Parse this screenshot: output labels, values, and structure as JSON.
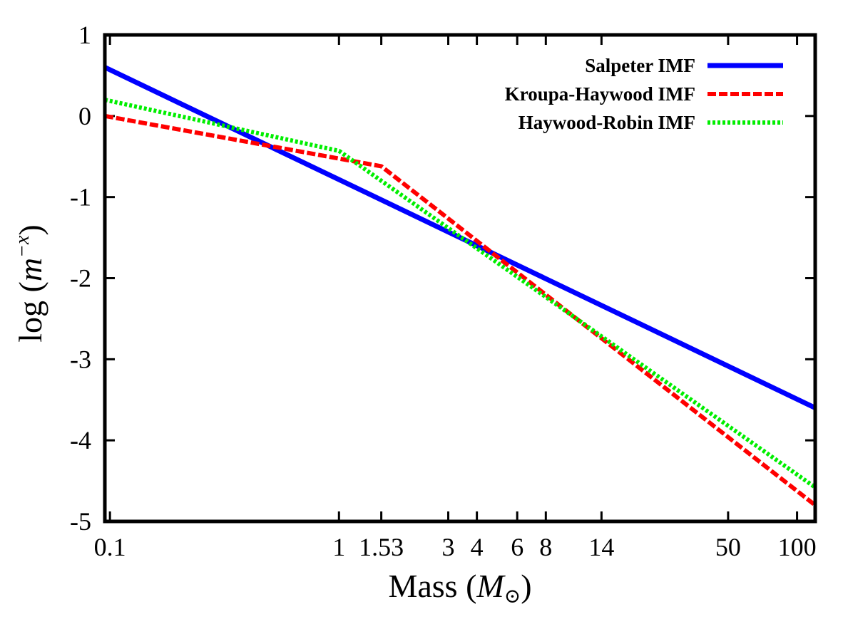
{
  "chart_data": {
    "type": "line",
    "xscale": "log",
    "xlim": [
      0.095,
      120
    ],
    "ylim": [
      -5,
      1
    ],
    "xlabel": {
      "text": "Mass (",
      "symbol": "M",
      "subscript": "⊙",
      "close": ")"
    },
    "ylabel": {
      "text": "log (",
      "symbol": "m",
      "superscript": "−x",
      "close": ")"
    },
    "x_ticks": [
      {
        "value": 0.1,
        "label": "0.1"
      },
      {
        "value": 1,
        "label": "1"
      },
      {
        "value": 1.53,
        "label": "1.53"
      },
      {
        "value": 3,
        "label": "3"
      },
      {
        "value": 4,
        "label": "4"
      },
      {
        "value": 6,
        "label": "6"
      },
      {
        "value": 8,
        "label": "8"
      },
      {
        "value": 14,
        "label": "14"
      },
      {
        "value": 50,
        "label": "50"
      },
      {
        "value": 100,
        "label": "100"
      }
    ],
    "y_ticks": [
      {
        "value": 1,
        "label": "1"
      },
      {
        "value": 0,
        "label": "0"
      },
      {
        "value": -1,
        "label": "-1"
      },
      {
        "value": -2,
        "label": "-2"
      },
      {
        "value": -3,
        "label": "-3"
      },
      {
        "value": -4,
        "label": "-4"
      },
      {
        "value": -5,
        "label": "-5"
      }
    ],
    "grid": false,
    "legend_position": "top-right",
    "series": [
      {
        "name": "Salpeter IMF",
        "color": "#0000ff",
        "style": "solid",
        "x": [
          0.095,
          120
        ],
        "y": [
          0.6,
          -3.6
        ]
      },
      {
        "name": "Kroupa-Haywood IMF",
        "color": "#ff0000",
        "style": "dashed",
        "x": [
          0.095,
          1.53,
          120
        ],
        "y": [
          0.0,
          -0.62,
          -4.8
        ]
      },
      {
        "name": "Haywood-Robin IMF",
        "color": "#00ee00",
        "style": "dotted",
        "x": [
          0.095,
          1.0,
          120
        ],
        "y": [
          0.2,
          -0.43,
          -4.58
        ]
      }
    ]
  }
}
